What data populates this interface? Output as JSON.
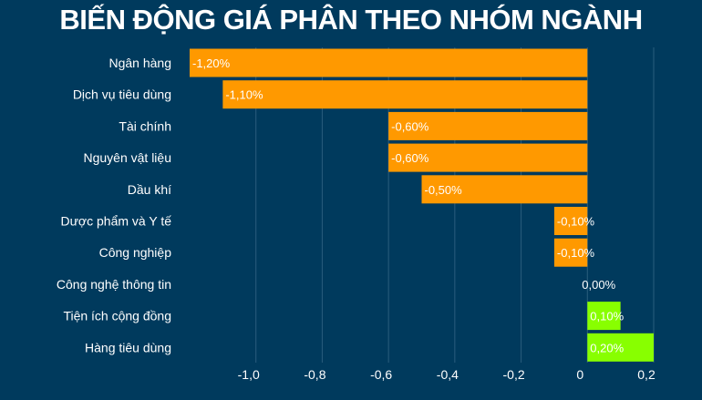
{
  "title": "BIẾN ĐỘNG GIÁ PHÂN THEO NHÓM NGÀNH",
  "colors": {
    "background": "#003a5d",
    "negative": "#ff9900",
    "positive": "#88ff00",
    "grid": "#2a5d7d",
    "text": "#ffffff"
  },
  "chart_data": {
    "type": "bar",
    "orientation": "horizontal",
    "categories": [
      "Ngân hàng",
      "Dịch vụ tiêu dùng",
      "Tài chính",
      "Nguyên vật liệu",
      "Dầu khí",
      "Dược phẩm và Y tế",
      "Công nghiệp",
      "Công nghệ thông tin",
      "Tiện ích cộng đồng",
      "Hàng tiêu dùng"
    ],
    "values": [
      -1.2,
      -1.1,
      -0.6,
      -0.6,
      -0.5,
      -0.1,
      -0.1,
      0.0,
      0.1,
      0.2
    ],
    "value_labels": [
      "-1,20%",
      "-1,10%",
      "-0,60%",
      "-0,60%",
      "-0,50%",
      "-0,10%",
      "-0,10%",
      "0,00%",
      "0,10%",
      "0,20%"
    ],
    "xlim": [
      -1.2,
      0.2
    ],
    "xticks": [
      -1.0,
      -0.8,
      -0.6,
      -0.4,
      -0.2,
      0,
      0.2
    ],
    "xtick_labels": [
      "-1,0",
      "-0,8",
      "-0,6",
      "-0,4",
      "-0,2",
      "0",
      "0,2"
    ],
    "grid": true,
    "legend": "none"
  }
}
